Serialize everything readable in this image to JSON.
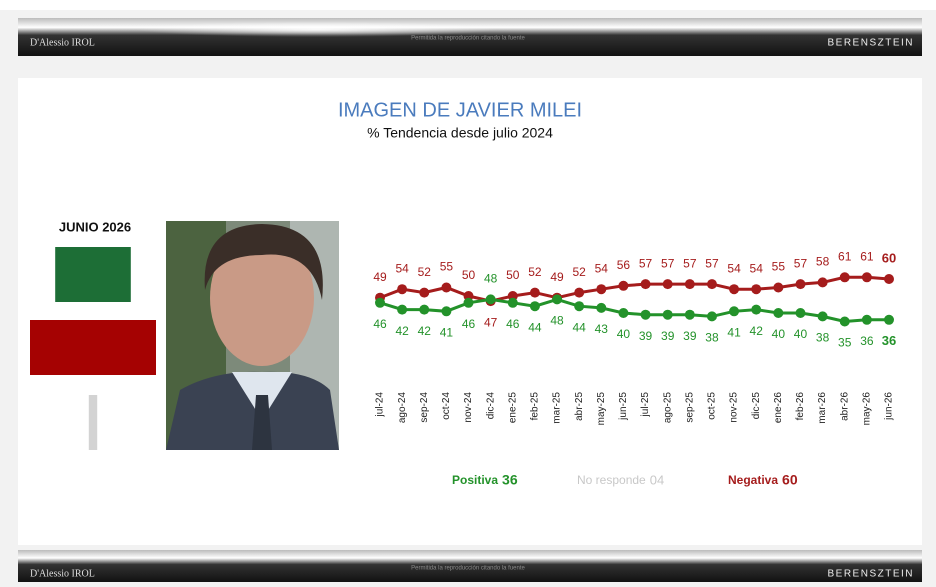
{
  "header": {
    "brand_left": "D'Alessio IROL",
    "notice": "Permitida la reproducción citando la fuente",
    "brand_right": "BERENSZTEIN"
  },
  "chart_data": [
    {
      "type": "line",
      "title": "IMAGEN DE JAVIER MILEI",
      "subtitle": "% Tendencia desde julio 2024",
      "categories": [
        "jul-24",
        "ago-24",
        "sep-24",
        "oct-24",
        "nov-24",
        "dic-24",
        "ene-25",
        "feb-25",
        "mar-25",
        "abr-25",
        "may-25",
        "jun-25",
        "jul-25",
        "ago-25",
        "sep-25",
        "oct-25",
        "nov-25",
        "dic-25",
        "ene-26",
        "feb-26",
        "mar-26",
        "abr-26",
        "may-26",
        "jun-26"
      ],
      "series": [
        {
          "name": "Negativa",
          "color": "#a51c1c",
          "values": [
            49,
            54,
            52,
            55,
            50,
            47,
            50,
            52,
            49,
            52,
            54,
            56,
            57,
            57,
            57,
            57,
            54,
            54,
            55,
            57,
            58,
            61,
            61,
            60
          ]
        },
        {
          "name": "Positiva",
          "color": "#23922a",
          "values": [
            46,
            42,
            42,
            41,
            46,
            48,
            46,
            44,
            48,
            44,
            43,
            40,
            39,
            39,
            39,
            38,
            41,
            42,
            40,
            40,
            38,
            35,
            36,
            36
          ]
        }
      ]
    },
    {
      "type": "bar",
      "title": "JUNIO 2026",
      "categories": [
        "Positiva",
        "No responde",
        "Negativa"
      ],
      "values": [
        36,
        4,
        60
      ],
      "value_labels": [
        "36",
        "04",
        "60"
      ],
      "colors": [
        "#1d6e36",
        "#d3d3d3",
        "#a50202"
      ],
      "label_colors": [
        "#23922a",
        "#c8c8c8",
        "#a51c1c"
      ]
    }
  ]
}
